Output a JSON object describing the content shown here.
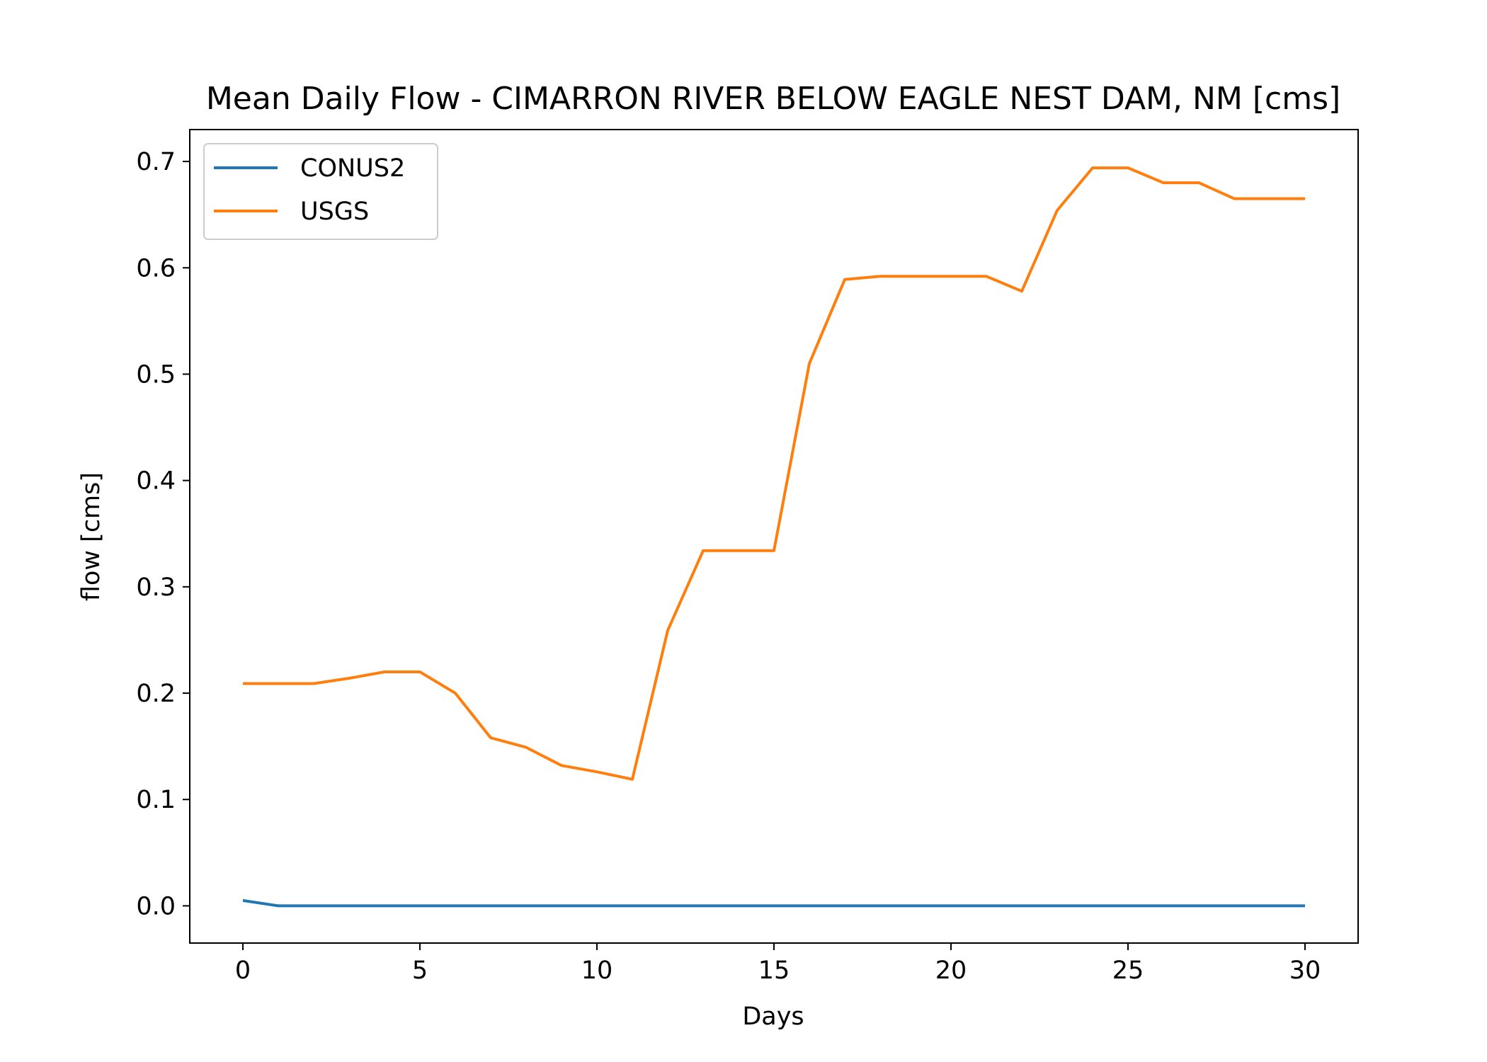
{
  "chart_data": {
    "type": "line",
    "title": "Mean Daily Flow - CIMARRON RIVER BELOW EAGLE NEST DAM, NM [cms]",
    "xlabel": "Days",
    "ylabel": "flow [cms]",
    "xlim": [
      -1.5,
      31.5
    ],
    "ylim": [
      -0.035,
      0.73
    ],
    "xticks": [
      0,
      5,
      10,
      15,
      20,
      25,
      30
    ],
    "yticks": [
      0.0,
      0.1,
      0.2,
      0.3,
      0.4,
      0.5,
      0.6,
      0.7
    ],
    "xtick_labels": [
      "0",
      "5",
      "10",
      "15",
      "20",
      "25",
      "30"
    ],
    "ytick_labels": [
      "0.0",
      "0.1",
      "0.2",
      "0.3",
      "0.4",
      "0.5",
      "0.6",
      "0.7"
    ],
    "grid": false,
    "legend_position": "top-left",
    "x": [
      0,
      1,
      2,
      3,
      4,
      5,
      6,
      7,
      8,
      9,
      10,
      11,
      12,
      13,
      14,
      15,
      16,
      17,
      18,
      19,
      20,
      21,
      22,
      23,
      24,
      25,
      26,
      27,
      28,
      29,
      30
    ],
    "series": [
      {
        "name": "CONUS2",
        "color": "#1f77b4",
        "values": [
          0.005,
          0,
          0,
          0,
          0,
          0,
          0,
          0,
          0,
          0,
          0,
          0,
          0,
          0,
          0,
          0,
          0,
          0,
          0,
          0,
          0,
          0,
          0,
          0,
          0,
          0,
          0,
          0,
          0,
          0,
          0
        ]
      },
      {
        "name": "USGS",
        "color": "#ff7f0e",
        "values": [
          0.209,
          0.209,
          0.209,
          0.214,
          0.22,
          0.22,
          0.2,
          0.158,
          0.149,
          0.132,
          0.126,
          0.119,
          0.259,
          0.334,
          0.334,
          0.334,
          0.51,
          0.589,
          0.592,
          0.592,
          0.592,
          0.592,
          0.578,
          0.654,
          0.694,
          0.694,
          0.68,
          0.68,
          0.665,
          0.665,
          0.665
        ]
      }
    ]
  }
}
